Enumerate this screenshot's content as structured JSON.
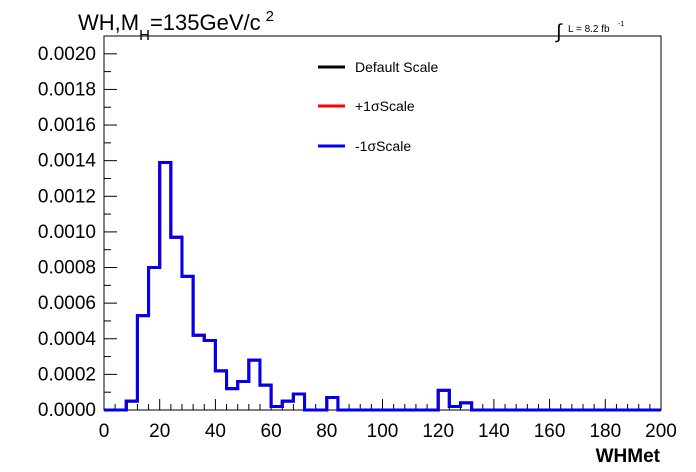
{
  "chart_data": {
    "type": "line",
    "title": {
      "prefix": "WH,M",
      "subscript": "H",
      "value": "=135GeV/c",
      "superscript": "2"
    },
    "luminosity": {
      "symbol": "∫",
      "text": "L = 8.2 fb",
      "superscript": "-1"
    },
    "xlabel": "WHMet",
    "ylabel": "",
    "xlim": [
      0,
      200
    ],
    "ylim": [
      0,
      0.0021
    ],
    "x_ticks": [
      "0",
      "20",
      "40",
      "60",
      "80",
      "100",
      "120",
      "140",
      "160",
      "180",
      "200"
    ],
    "y_ticks": [
      "0.0000",
      "0.0002",
      "0.0004",
      "0.0006",
      "0.0008",
      "0.0010",
      "0.0012",
      "0.0014",
      "0.0016",
      "0.0018",
      "0.0020"
    ],
    "bin_edges": [
      0,
      4,
      8,
      12,
      16,
      20,
      24,
      28,
      32,
      36,
      40,
      44,
      48,
      52,
      56,
      60,
      64,
      68,
      72,
      76,
      80,
      84,
      88,
      92,
      96,
      100,
      104,
      108,
      112,
      116,
      120,
      124,
      128,
      132,
      136,
      140,
      144,
      148,
      152,
      156,
      160,
      164,
      168,
      172,
      176,
      180,
      184,
      188,
      192,
      196,
      200
    ],
    "legend_position": "top-right",
    "series": [
      {
        "name": "Default Scale",
        "color": "#000000",
        "values": [
          0,
          0,
          5e-05,
          0.00053,
          0.0008,
          0.00139,
          0.00097,
          0.00075,
          0.00042,
          0.00039,
          0.00022,
          0.00012,
          0.00016,
          0.00028,
          0.00014,
          2e-05,
          5e-05,
          9e-05,
          0,
          0,
          7e-05,
          0,
          0,
          0,
          0,
          0,
          0,
          0,
          0,
          0,
          0.00011,
          2e-05,
          4e-05,
          0,
          0,
          0,
          0,
          0,
          0,
          0,
          0,
          0,
          0,
          0,
          0,
          0,
          0,
          0,
          0,
          0
        ]
      },
      {
        "name": "+1σScale",
        "color": "#ff0000",
        "values": [
          0,
          0,
          5e-05,
          0.00053,
          0.0008,
          0.00139,
          0.00097,
          0.00075,
          0.00042,
          0.00039,
          0.00022,
          0.00012,
          0.00016,
          0.00028,
          0.00014,
          2e-05,
          5e-05,
          9e-05,
          0,
          0,
          7e-05,
          0,
          0,
          0,
          0,
          0,
          0,
          0,
          0,
          0,
          0.00011,
          2e-05,
          4e-05,
          0,
          0,
          0,
          0,
          0,
          0,
          0,
          0,
          0,
          0,
          0,
          0,
          0,
          0,
          0,
          0,
          0
        ]
      },
      {
        "name": "-1σScale",
        "color": "#0000ee",
        "values": [
          0,
          0,
          5e-05,
          0.00053,
          0.0008,
          0.00139,
          0.00097,
          0.00075,
          0.00042,
          0.00039,
          0.00022,
          0.00012,
          0.00016,
          0.00028,
          0.00014,
          2e-05,
          5e-05,
          9e-05,
          0,
          0,
          7e-05,
          0,
          0,
          0,
          0,
          0,
          0,
          0,
          0,
          0,
          0.00011,
          2e-05,
          4e-05,
          0,
          0,
          0,
          0,
          0,
          0,
          0,
          0,
          0,
          0,
          0,
          0,
          0,
          0,
          0,
          0,
          0
        ]
      }
    ]
  }
}
